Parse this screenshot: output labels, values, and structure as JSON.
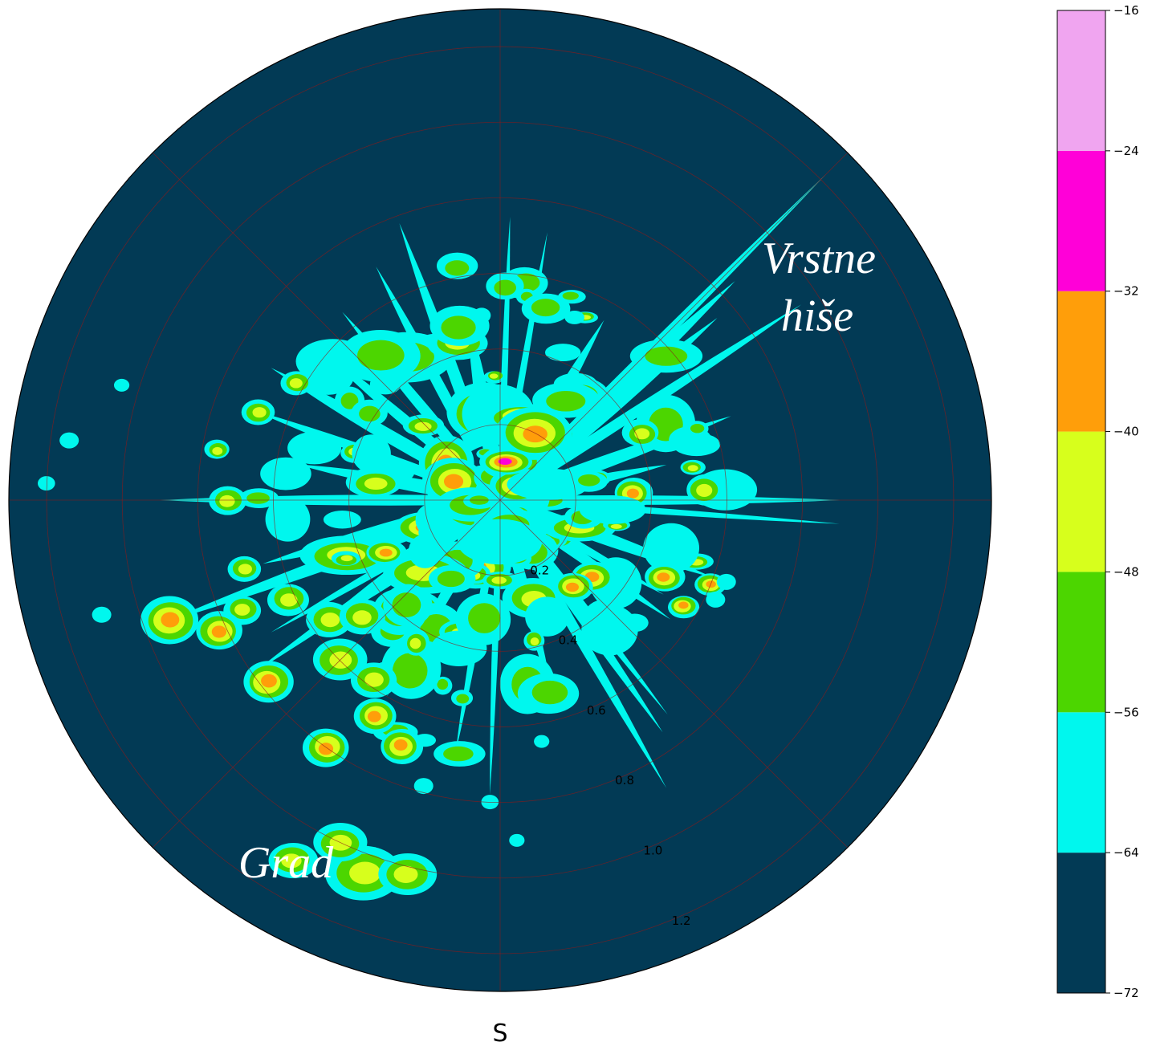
{
  "chart_data": {
    "type": "heatmap",
    "subtype": "polar-contour",
    "direction_label": "S",
    "radial_ticks": [
      "0.2",
      "0.4",
      "0.6",
      "0.8",
      "1.0",
      "1.2"
    ],
    "radial_tick_values": [
      0.2,
      0.4,
      0.6,
      0.8,
      1.0,
      1.2
    ],
    "rlim": [
      0,
      1.3
    ],
    "grid": true,
    "angular_grid_deg": [
      0,
      45,
      90,
      135,
      180,
      225,
      270,
      315
    ],
    "annotations": [
      {
        "text": "Vrstne",
        "line": 1
      },
      {
        "text": "hiše",
        "line": 2
      },
      {
        "text": "Grad",
        "line": 1
      }
    ],
    "colorbar": {
      "levels": [
        -72,
        -64,
        -56,
        -48,
        -40,
        -32,
        -24,
        -16
      ],
      "tick_labels": [
        "−72",
        "−64",
        "−56",
        "−48",
        "−40",
        "−32",
        "−24",
        "−16"
      ],
      "colors": [
        "#023a55",
        "#00f7ee",
        "#4cd600",
        "#d7ff1c",
        "#ff9e0a",
        "#ff00d8",
        "#f0a5f0"
      ]
    },
    "features": [
      {
        "name": "Vrstne hiše",
        "angle_deg": 45,
        "r_range": [
          0.05,
          1.22
        ],
        "level": -56,
        "kind": "streak"
      },
      {
        "name": "Grad",
        "angle_deg": 200,
        "r_range": [
          0.9,
          1.12
        ],
        "level": -48,
        "kind": "cluster"
      }
    ]
  },
  "colors": {
    "background": "#023a55",
    "grid": "#8b1a1a"
  }
}
